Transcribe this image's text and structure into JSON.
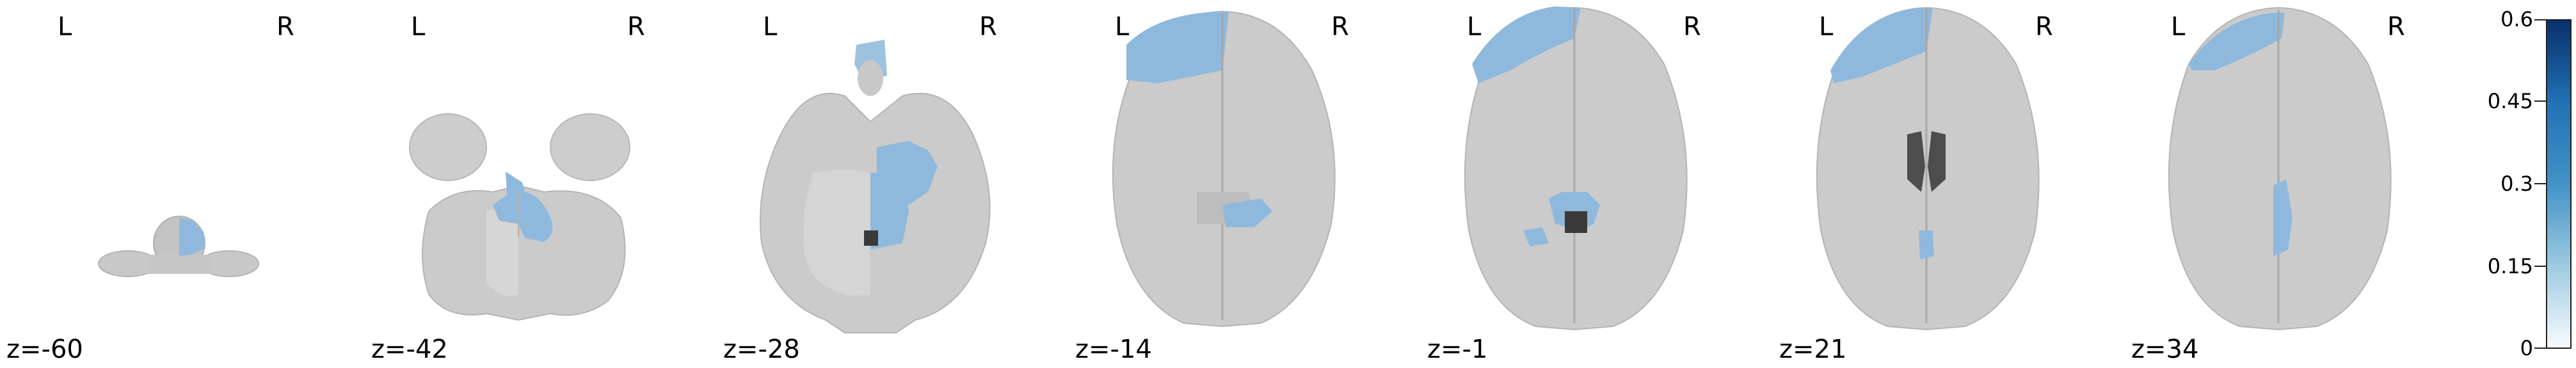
{
  "orientation": {
    "left": "L",
    "right": "R"
  },
  "slices": [
    {
      "label": "z=-60"
    },
    {
      "label": "z=-42"
    },
    {
      "label": "z=-28"
    },
    {
      "label": "z=-14"
    },
    {
      "label": "z=-1"
    },
    {
      "label": "z=21"
    },
    {
      "label": "z=34"
    }
  ],
  "colorbar": {
    "ticks": [
      "0.6",
      "0.45",
      "0.3",
      "0.15",
      "0"
    ],
    "colors": [
      "#f7fbff",
      "#9ecae1",
      "#4292c6",
      "#2171b5",
      "#08306b"
    ]
  },
  "overlay_color": "#7fb2d8"
}
